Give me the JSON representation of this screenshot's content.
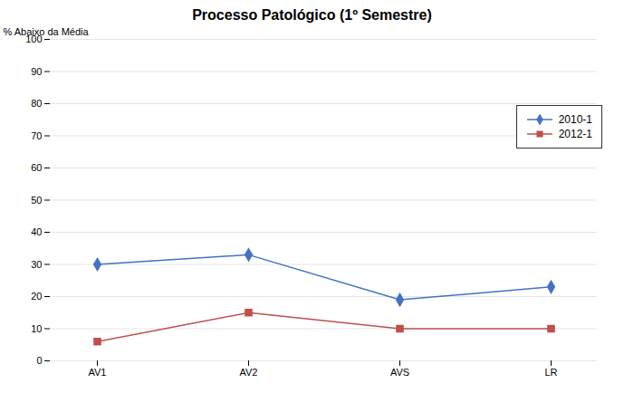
{
  "chart_data": {
    "type": "line",
    "title": "Processo Patológico (1º Semestre)",
    "ylabel": "% Abaixo da Média",
    "categories": [
      "AV1",
      "AV2",
      "AVS",
      "LR"
    ],
    "series": [
      {
        "name": "2010-1",
        "color": "#4472C4",
        "marker": "diamond",
        "values": [
          30,
          33,
          19,
          23
        ]
      },
      {
        "name": "2012-1",
        "color": "#C0504D",
        "marker": "square",
        "values": [
          6,
          15,
          10,
          10
        ]
      }
    ],
    "ylim": [
      0,
      100
    ],
    "yticks": [
      0,
      10,
      20,
      30,
      40,
      50,
      60,
      70,
      80,
      90,
      100
    ],
    "grid": true,
    "legend": "right"
  }
}
